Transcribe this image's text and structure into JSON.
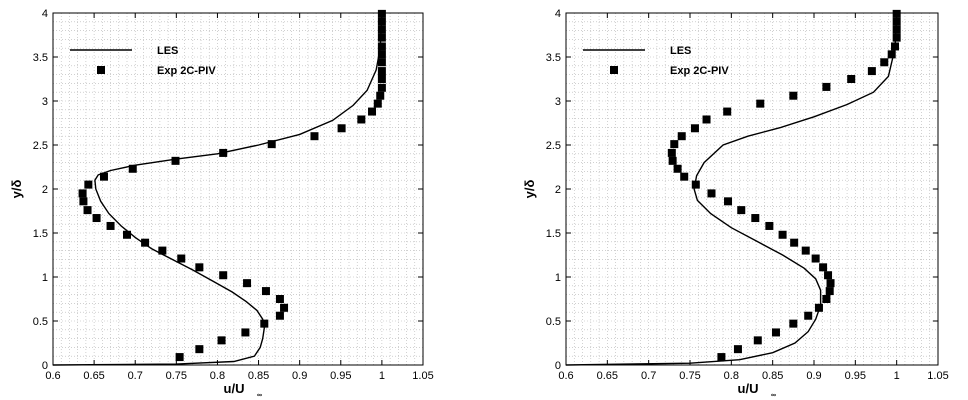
{
  "chart_data": [
    {
      "type": "line",
      "xlabel": "u/U",
      "xlabel_sub": "∞",
      "ylabel": "y/δ",
      "xlim": [
        0.6,
        1.05
      ],
      "ylim": [
        0,
        4
      ],
      "xticks": [
        "0.6",
        "0.65",
        "0.7",
        "0.75",
        "0.8",
        "0.85",
        "0.9",
        "0.95",
        "1",
        "1.05"
      ],
      "yticks": [
        "0",
        "0.5",
        "1",
        "1.5",
        "2",
        "2.5",
        "3",
        "3.5",
        "4"
      ],
      "grid": true,
      "legend": "top-left",
      "series": [
        {
          "name": "LES",
          "style": "line",
          "color": "#000000",
          "points": [
            [
              0.6,
              0.0
            ],
            [
              0.75,
              0.01
            ],
            [
              0.82,
              0.04
            ],
            [
              0.845,
              0.1
            ],
            [
              0.852,
              0.2
            ],
            [
              0.855,
              0.3
            ],
            [
              0.857,
              0.42
            ],
            [
              0.855,
              0.52
            ],
            [
              0.848,
              0.62
            ],
            [
              0.835,
              0.72
            ],
            [
              0.818,
              0.83
            ],
            [
              0.795,
              0.95
            ],
            [
              0.77,
              1.08
            ],
            [
              0.745,
              1.2
            ],
            [
              0.72,
              1.32
            ],
            [
              0.7,
              1.45
            ],
            [
              0.683,
              1.58
            ],
            [
              0.668,
              1.72
            ],
            [
              0.658,
              1.86
            ],
            [
              0.652,
              2.0
            ],
            [
              0.651,
              2.1
            ],
            [
              0.655,
              2.16
            ],
            [
              0.67,
              2.21
            ],
            [
              0.7,
              2.27
            ],
            [
              0.75,
              2.34
            ],
            [
              0.8,
              2.4
            ],
            [
              0.85,
              2.5
            ],
            [
              0.9,
              2.62
            ],
            [
              0.94,
              2.78
            ],
            [
              0.965,
              2.95
            ],
            [
              0.982,
              3.12
            ],
            [
              0.993,
              3.35
            ],
            [
              0.998,
              3.6
            ],
            [
              1.0,
              4.0
            ]
          ]
        },
        {
          "name": "Exp 2C-PIV",
          "style": "marker",
          "color": "#000000",
          "points": [
            [
              0.754,
              0.09
            ],
            [
              0.778,
              0.18
            ],
            [
              0.805,
              0.28
            ],
            [
              0.834,
              0.37
            ],
            [
              0.857,
              0.47
            ],
            [
              0.876,
              0.56
            ],
            [
              0.881,
              0.65
            ],
            [
              0.876,
              0.75
            ],
            [
              0.859,
              0.84
            ],
            [
              0.836,
              0.93
            ],
            [
              0.807,
              1.02
            ],
            [
              0.778,
              1.11
            ],
            [
              0.756,
              1.21
            ],
            [
              0.733,
              1.3
            ],
            [
              0.712,
              1.39
            ],
            [
              0.69,
              1.48
            ],
            [
              0.67,
              1.58
            ],
            [
              0.653,
              1.67
            ],
            [
              0.642,
              1.76
            ],
            [
              0.637,
              1.86
            ],
            [
              0.636,
              1.95
            ],
            [
              0.643,
              2.05
            ],
            [
              0.662,
              2.14
            ],
            [
              0.697,
              2.23
            ],
            [
              0.749,
              2.32
            ],
            [
              0.807,
              2.41
            ],
            [
              0.866,
              2.51
            ],
            [
              0.918,
              2.6
            ],
            [
              0.951,
              2.69
            ],
            [
              0.975,
              2.79
            ],
            [
              0.988,
              2.88
            ],
            [
              0.995,
              2.97
            ],
            [
              0.998,
              3.06
            ],
            [
              1.0,
              3.15
            ],
            [
              1.0,
              3.25
            ],
            [
              1.0,
              3.34
            ],
            [
              1.0,
              3.44
            ],
            [
              1.0,
              3.53
            ],
            [
              1.0,
              3.62
            ],
            [
              1.0,
              3.72
            ],
            [
              1.0,
              3.81
            ],
            [
              1.0,
              3.9
            ],
            [
              1.0,
              3.99
            ]
          ]
        }
      ]
    },
    {
      "type": "line",
      "xlabel": "u/U",
      "xlabel_sub": "∞",
      "ylabel": "y/δ",
      "xlim": [
        0.6,
        1.05
      ],
      "ylim": [
        0,
        4
      ],
      "xticks": [
        "0.6",
        "0.65",
        "0.7",
        "0.75",
        "0.8",
        "0.85",
        "0.9",
        "0.95",
        "1",
        "1.05"
      ],
      "yticks": [
        "0",
        "0.5",
        "1",
        "1.5",
        "2",
        "2.5",
        "3",
        "3.5",
        "4"
      ],
      "grid": true,
      "legend": "top-left",
      "series": [
        {
          "name": "LES",
          "style": "line",
          "color": "#000000",
          "points": [
            [
              0.6,
              0.0
            ],
            [
              0.75,
              0.02
            ],
            [
              0.81,
              0.06
            ],
            [
              0.85,
              0.14
            ],
            [
              0.877,
              0.25
            ],
            [
              0.893,
              0.38
            ],
            [
              0.902,
              0.52
            ],
            [
              0.908,
              0.68
            ],
            [
              0.908,
              0.85
            ],
            [
              0.902,
              0.98
            ],
            [
              0.888,
              1.1
            ],
            [
              0.862,
              1.25
            ],
            [
              0.832,
              1.4
            ],
            [
              0.8,
              1.56
            ],
            [
              0.775,
              1.72
            ],
            [
              0.759,
              1.87
            ],
            [
              0.755,
              2.0
            ],
            [
              0.758,
              2.15
            ],
            [
              0.767,
              2.3
            ],
            [
              0.79,
              2.5
            ],
            [
              0.82,
              2.6
            ],
            [
              0.86,
              2.7
            ],
            [
              0.9,
              2.82
            ],
            [
              0.94,
              2.96
            ],
            [
              0.972,
              3.1
            ],
            [
              0.99,
              3.28
            ],
            [
              0.998,
              3.6
            ],
            [
              1.0,
              4.0
            ]
          ]
        },
        {
          "name": "Exp 2C-PIV",
          "style": "marker",
          "color": "#000000",
          "points": [
            [
              0.788,
              0.09
            ],
            [
              0.808,
              0.18
            ],
            [
              0.832,
              0.28
            ],
            [
              0.854,
              0.37
            ],
            [
              0.875,
              0.47
            ],
            [
              0.893,
              0.56
            ],
            [
              0.906,
              0.65
            ],
            [
              0.915,
              0.75
            ],
            [
              0.919,
              0.84
            ],
            [
              0.92,
              0.93
            ],
            [
              0.917,
              1.02
            ],
            [
              0.911,
              1.11
            ],
            [
              0.902,
              1.21
            ],
            [
              0.89,
              1.3
            ],
            [
              0.876,
              1.39
            ],
            [
              0.862,
              1.48
            ],
            [
              0.846,
              1.58
            ],
            [
              0.829,
              1.67
            ],
            [
              0.812,
              1.76
            ],
            [
              0.796,
              1.86
            ],
            [
              0.776,
              1.95
            ],
            [
              0.757,
              2.05
            ],
            [
              0.743,
              2.14
            ],
            [
              0.735,
              2.23
            ],
            [
              0.729,
              2.32
            ],
            [
              0.728,
              2.41
            ],
            [
              0.731,
              2.51
            ],
            [
              0.74,
              2.6
            ],
            [
              0.756,
              2.69
            ],
            [
              0.77,
              2.79
            ],
            [
              0.795,
              2.88
            ],
            [
              0.835,
              2.97
            ],
            [
              0.875,
              3.06
            ],
            [
              0.915,
              3.16
            ],
            [
              0.945,
              3.25
            ],
            [
              0.97,
              3.34
            ],
            [
              0.985,
              3.44
            ],
            [
              0.994,
              3.53
            ],
            [
              0.998,
              3.62
            ],
            [
              1.0,
              3.72
            ],
            [
              1.0,
              3.81
            ],
            [
              1.0,
              3.9
            ],
            [
              1.0,
              3.99
            ]
          ]
        }
      ]
    }
  ]
}
